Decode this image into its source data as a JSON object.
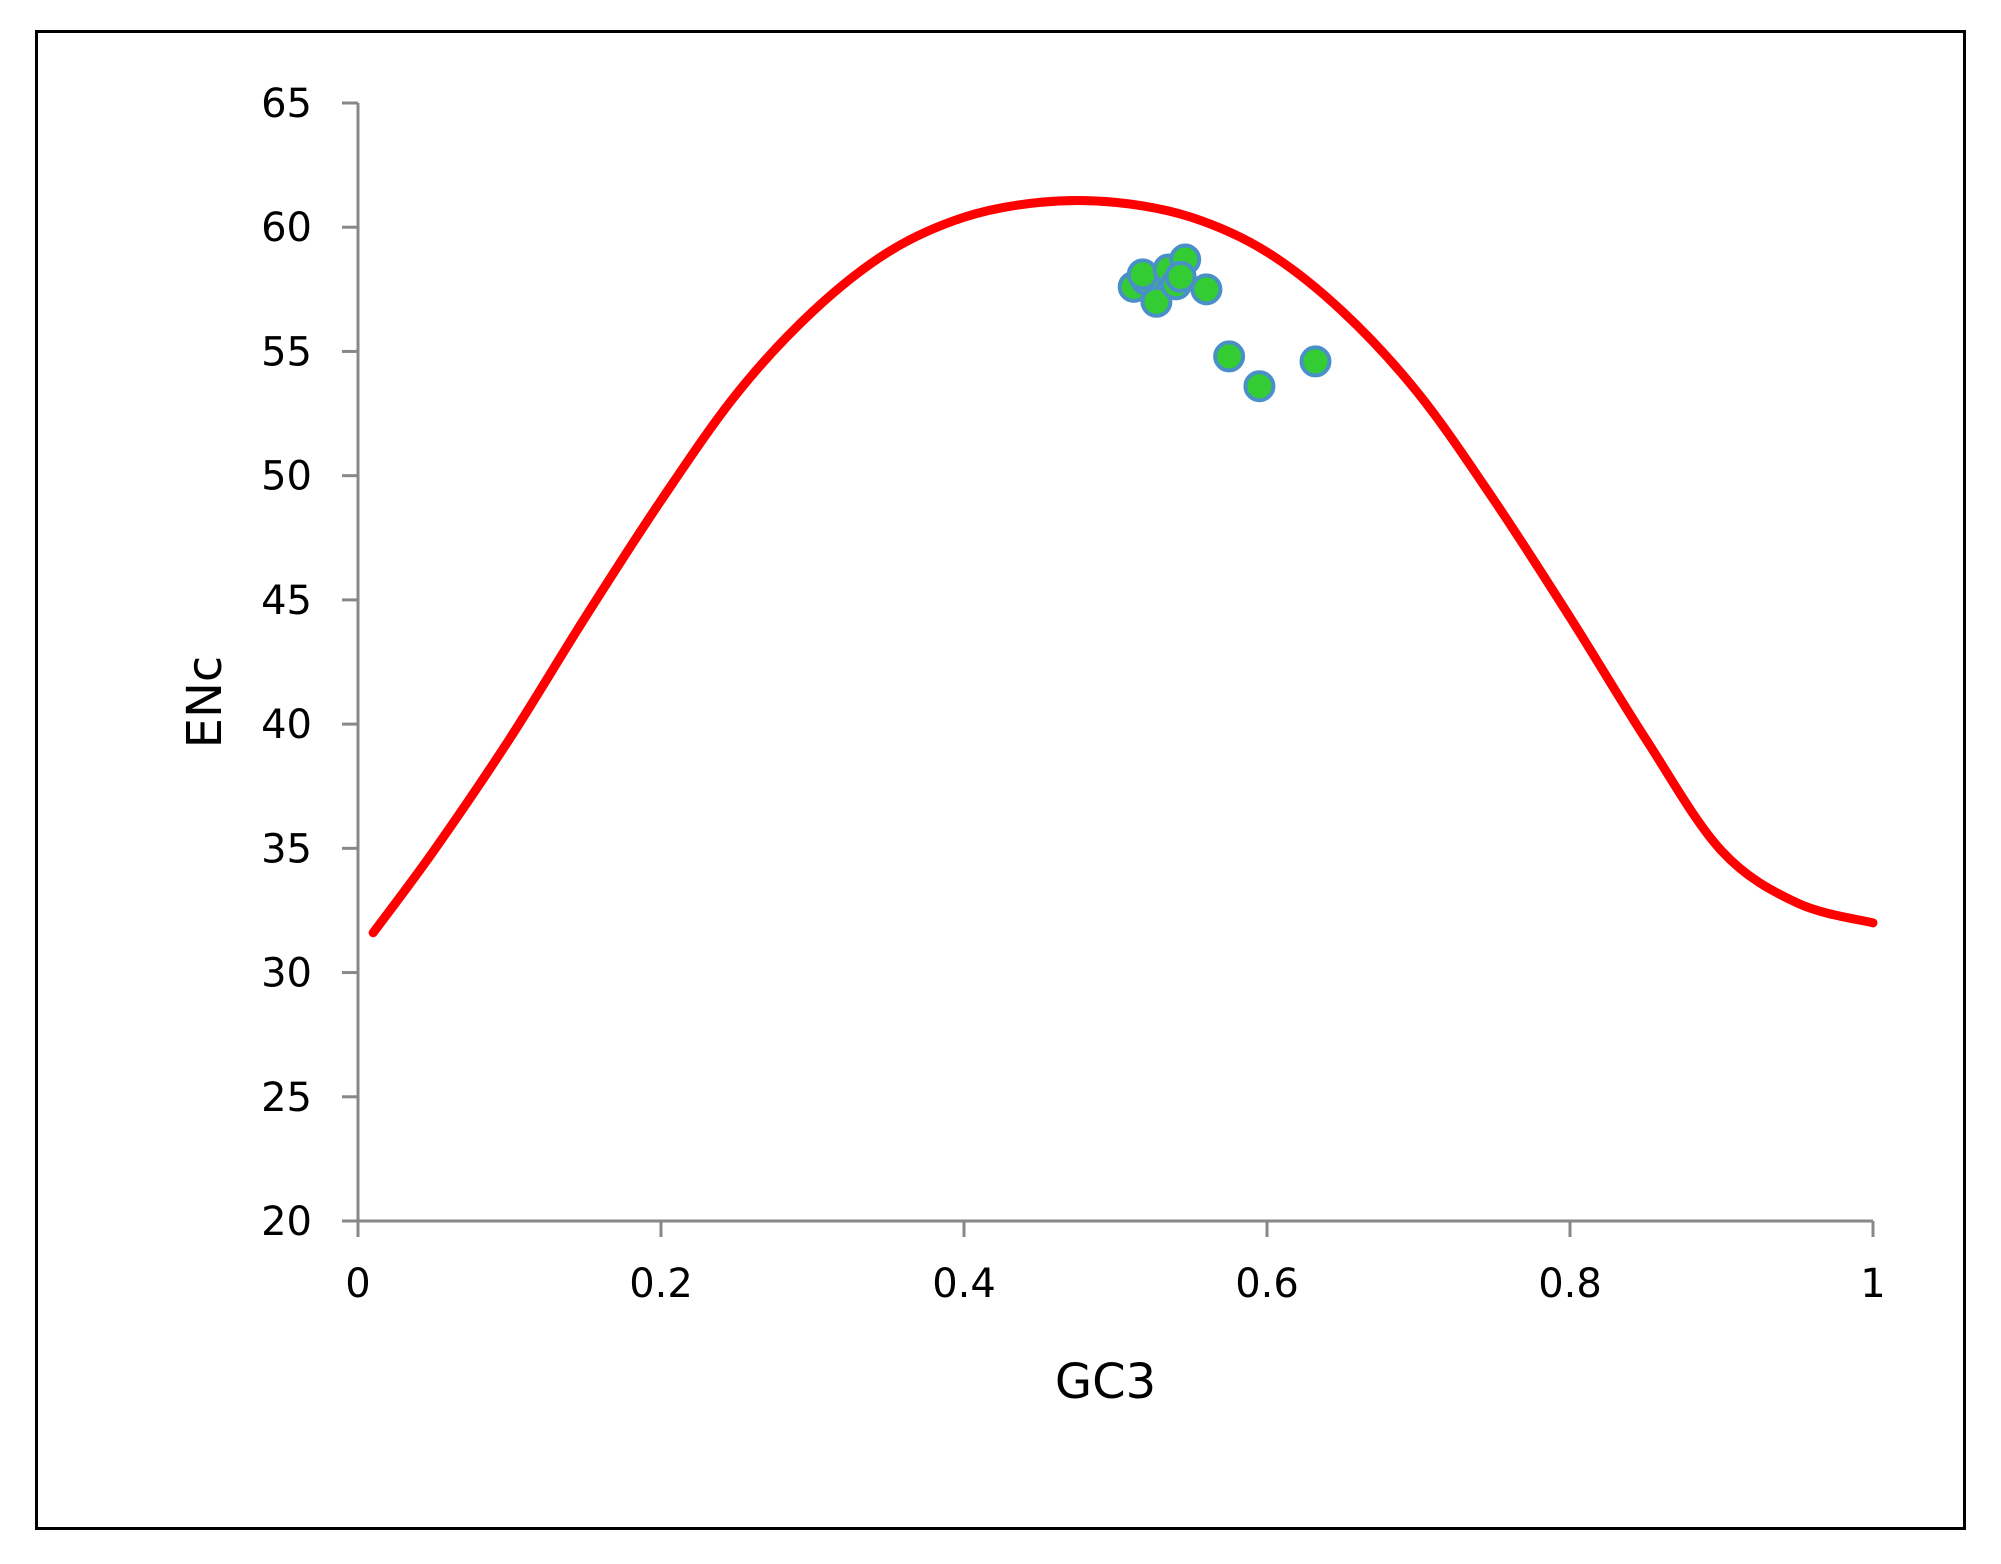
{
  "chart_data": {
    "type": "scatter",
    "title": "",
    "xlabel": "GC3",
    "ylabel": "ENc",
    "xlim": [
      0,
      1
    ],
    "ylim": [
      20,
      65
    ],
    "x_ticks": [
      "0",
      "0.2",
      "0.4",
      "0.6",
      "0.8",
      "1"
    ],
    "y_ticks": [
      "20",
      "25",
      "30",
      "35",
      "40",
      "45",
      "50",
      "55",
      "60",
      "65"
    ],
    "grid": false,
    "legend": "none",
    "curve_color": "#ff0000",
    "point_color": "#33cc33",
    "point_outline_color": "#4a90c8",
    "expected_curve": {
      "x": [
        0.01,
        0.05,
        0.1,
        0.15,
        0.2,
        0.25,
        0.3,
        0.35,
        0.4,
        0.45,
        0.5,
        0.55,
        0.6,
        0.65,
        0.7,
        0.75,
        0.8,
        0.85,
        0.9,
        0.95,
        1.0
      ],
      "y": [
        31.6,
        34.9,
        39.4,
        44.3,
        49.0,
        53.3,
        56.6,
        59.0,
        60.4,
        61.0,
        61.0,
        60.4,
        59.0,
        56.6,
        53.3,
        49.0,
        44.3,
        39.4,
        34.9,
        32.8,
        32.0
      ]
    },
    "points": {
      "x": [
        0.512,
        0.52,
        0.518,
        0.527,
        0.535,
        0.54,
        0.546,
        0.543,
        0.56,
        0.575,
        0.595,
        0.632
      ],
      "y": [
        57.6,
        57.9,
        58.1,
        57.0,
        58.3,
        57.7,
        58.7,
        58.0,
        57.5,
        54.8,
        53.6,
        54.6
      ]
    }
  }
}
